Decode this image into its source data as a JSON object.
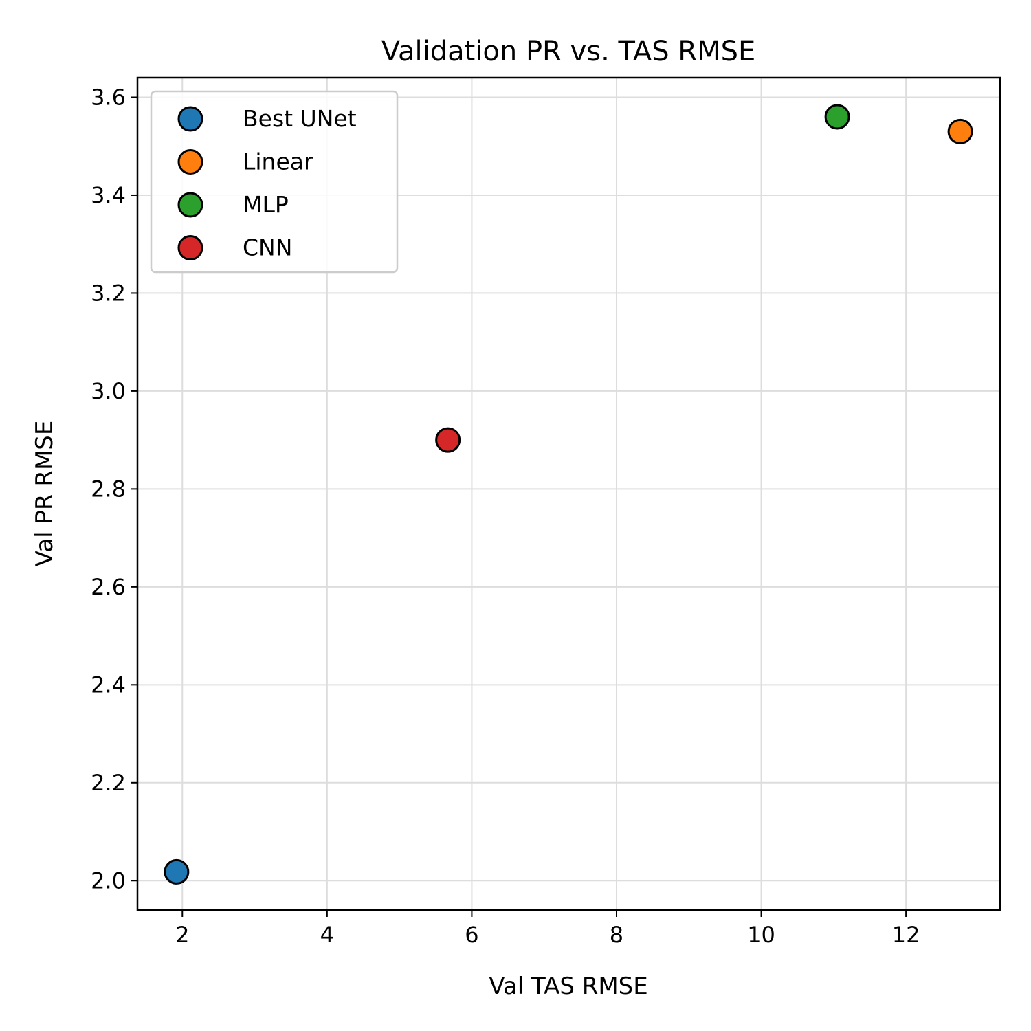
{
  "chart_data": {
    "type": "scatter",
    "title": "Validation PR vs. TAS RMSE",
    "xlabel": "Val TAS RMSE",
    "ylabel": "Val PR RMSE",
    "xlim": [
      1.38,
      13.3
    ],
    "ylim": [
      1.94,
      3.64
    ],
    "xticks": [
      2,
      4,
      6,
      8,
      10,
      12
    ],
    "yticks": [
      2.0,
      2.2,
      2.4,
      2.6,
      2.8,
      3.0,
      3.2,
      3.4,
      3.6
    ],
    "grid": true,
    "legend_position": "top-left",
    "series": [
      {
        "name": "Best UNet",
        "color": "#1f77b4",
        "x": [
          1.92
        ],
        "y": [
          2.018
        ]
      },
      {
        "name": "Linear",
        "color": "#ff7f0e",
        "x": [
          12.75
        ],
        "y": [
          3.53
        ]
      },
      {
        "name": "MLP",
        "color": "#2ca02c",
        "x": [
          11.05
        ],
        "y": [
          3.56
        ]
      },
      {
        "name": "CNN",
        "color": "#d62728",
        "x": [
          5.67
        ],
        "y": [
          2.9
        ]
      }
    ]
  }
}
